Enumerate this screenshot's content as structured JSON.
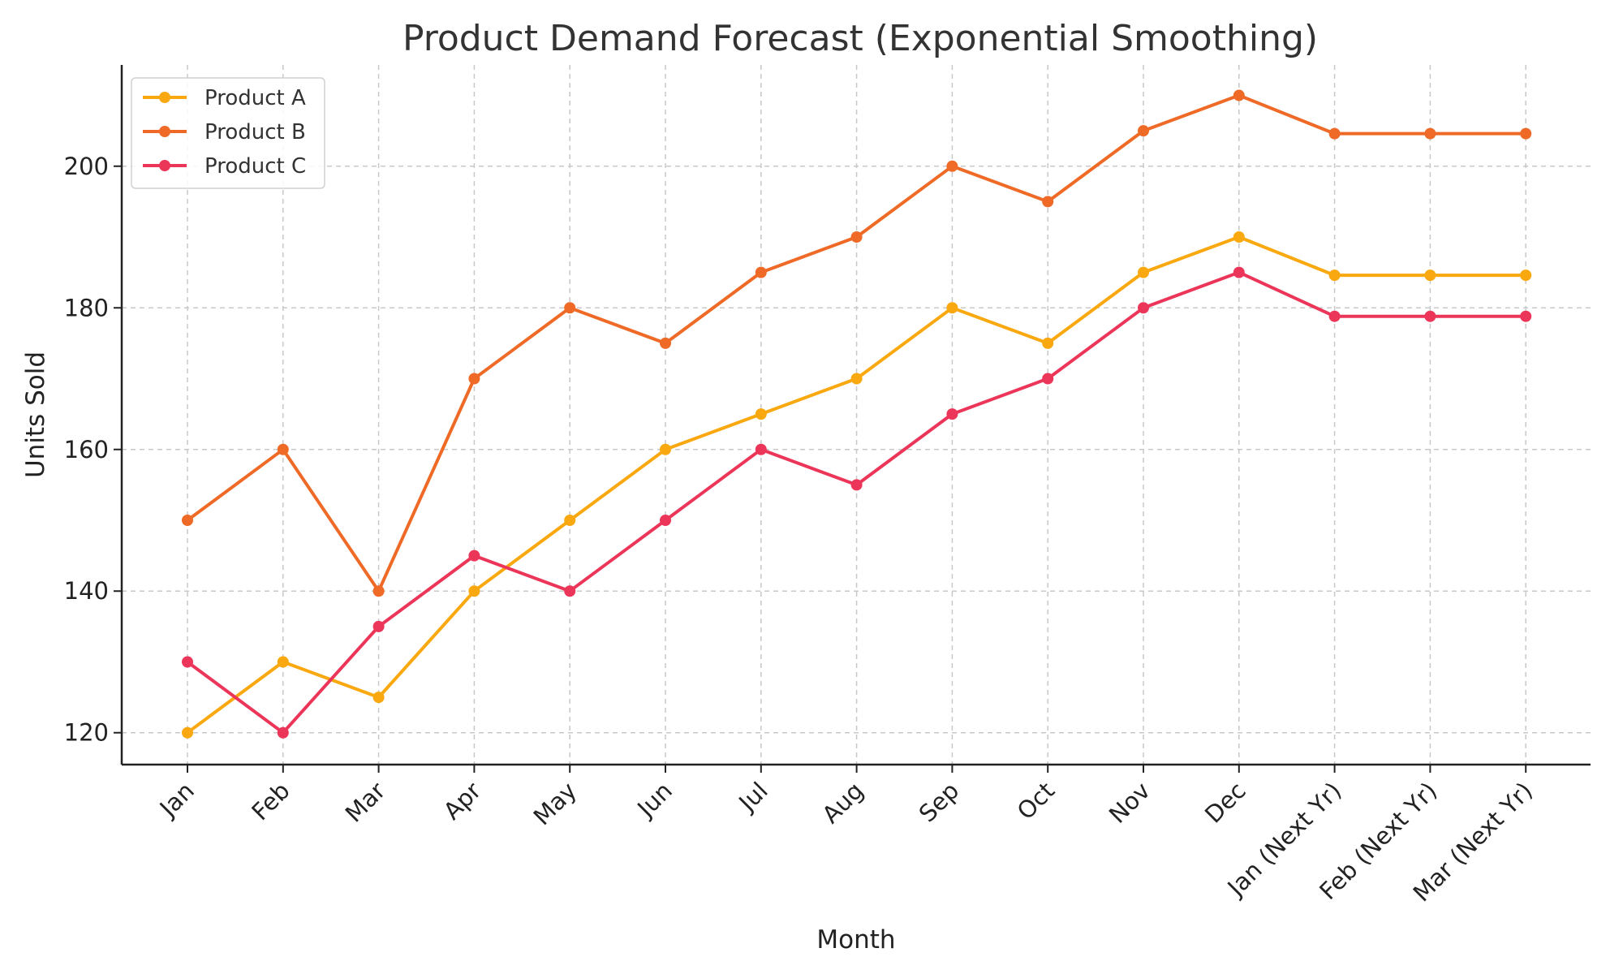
{
  "chart_data": {
    "type": "line",
    "title": "Product Demand Forecast (Exponential Smoothing)",
    "xlabel": "Month",
    "ylabel": "Units Sold",
    "categories": [
      "Jan",
      "Feb",
      "Mar",
      "Apr",
      "May",
      "Jun",
      "Jul",
      "Aug",
      "Sep",
      "Oct",
      "Nov",
      "Dec",
      "Jan (Next Yr)",
      "Feb (Next Yr)",
      "Mar (Next Yr)"
    ],
    "ylim": [
      115.5,
      214.3
    ],
    "yticks": [
      120,
      140,
      160,
      180,
      200
    ],
    "grid": true,
    "legend_position": "top-left",
    "series": [
      {
        "name": "Product A",
        "color": "#F9A80F",
        "values": [
          120,
          130,
          125,
          140,
          150,
          160,
          165,
          170,
          180,
          175,
          185,
          190,
          184.6,
          184.6,
          184.6
        ]
      },
      {
        "name": "Product B",
        "color": "#EE6A26",
        "values": [
          150,
          160,
          140,
          170,
          180,
          175,
          185,
          190,
          200,
          195,
          205,
          210,
          204.6,
          204.6,
          204.6
        ]
      },
      {
        "name": "Product C",
        "color": "#EC3659",
        "values": [
          130,
          120,
          135,
          145,
          140,
          150,
          160,
          155,
          165,
          170,
          180,
          185,
          178.8,
          178.8,
          178.8
        ]
      }
    ]
  }
}
